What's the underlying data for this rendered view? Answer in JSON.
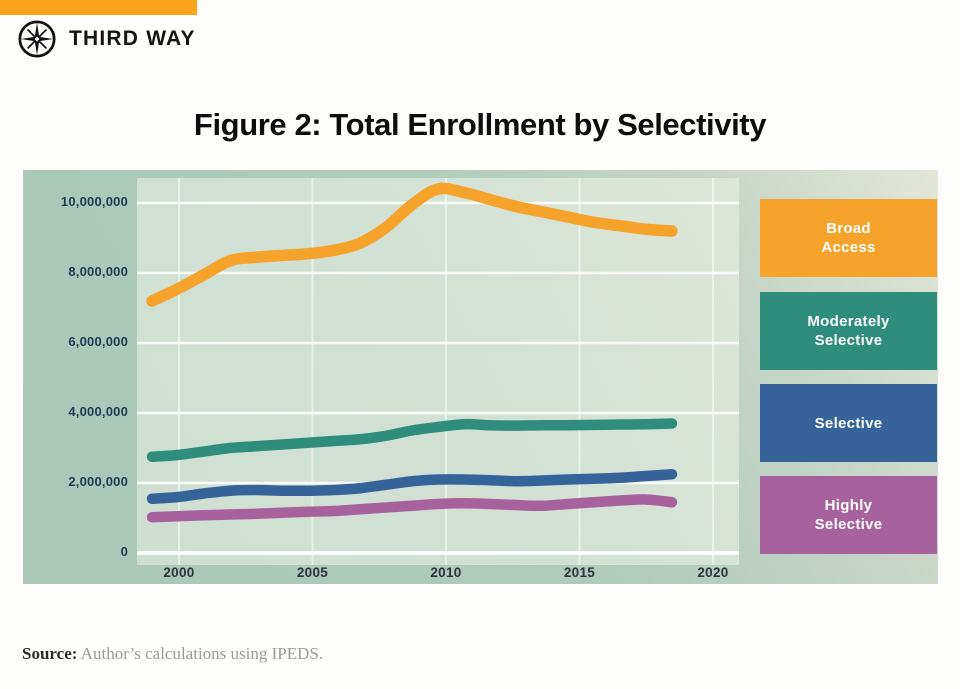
{
  "header": {
    "brand": "THIRD WAY"
  },
  "title": "Figure 2: Total Enrollment by Selectivity",
  "source": {
    "label": "Source:",
    "text": " Author’s calculations using IPEDS."
  },
  "colors": {
    "brand_orange": "#F9A51B",
    "broad_access": "#F5A32B",
    "moderately_selective": "#2F8E7B",
    "selective": "#35639A",
    "highly_selective": "#A7629D",
    "chart_outer_bg": "#AECBBB",
    "plot_bg": "#D3E1D5",
    "gridline": "#FFFFFF",
    "y_axis_label": "#1C3B51",
    "x_axis_label": "#2B333C"
  },
  "legend": {
    "items": [
      {
        "id": "broad-access",
        "lines": [
          "Broad",
          "Access"
        ],
        "color_key": "broad_access"
      },
      {
        "id": "moderately-selective",
        "lines": [
          "Moderately",
          "Selective"
        ],
        "color_key": "moderately_selective"
      },
      {
        "id": "selective",
        "lines": [
          "Selective"
        ],
        "color_key": "selective"
      },
      {
        "id": "highly-selective",
        "lines": [
          "Highly",
          "Selective"
        ],
        "color_key": "highly_selective"
      }
    ]
  },
  "chart_data": {
    "type": "line",
    "title": "Figure 2: Total Enrollment by Selectivity",
    "xlabel": "",
    "ylabel": "",
    "grid": true,
    "legend_position": "right",
    "xlim": [
      1998.5,
      2021.5
    ],
    "ylim": [
      0,
      10700000
    ],
    "x": [
      1999,
      2000,
      2001,
      2002,
      2003,
      2004,
      2005,
      2006,
      2007,
      2008,
      2009,
      2010,
      2011,
      2012,
      2013,
      2014,
      2015,
      2016,
      2017,
      2018,
      2019
    ],
    "x_ticks": [
      {
        "year": 2000,
        "label": "2000"
      },
      {
        "year": 2005,
        "label": "2005"
      },
      {
        "year": 2010,
        "label": "2010"
      },
      {
        "year": 2015,
        "label": "2015"
      },
      {
        "year": 2020,
        "label": "2020"
      }
    ],
    "y_ticks": [
      {
        "value": 10000000,
        "label": "10,000,000"
      },
      {
        "value": 8000000,
        "label": "8,000,000"
      },
      {
        "value": 6000000,
        "label": "6,000,000"
      },
      {
        "value": 4000000,
        "label": "4,000,000"
      },
      {
        "value": 2000000,
        "label": "2,000,000"
      },
      {
        "value": 0,
        "label": "0"
      }
    ],
    "series": [
      {
        "name": "Broad Access",
        "color_key": "broad_access",
        "values": [
          7200000,
          7550000,
          7950000,
          8350000,
          8450000,
          8500000,
          8550000,
          8650000,
          8850000,
          9300000,
          9950000,
          10400000,
          10300000,
          10100000,
          9900000,
          9750000,
          9600000,
          9450000,
          9350000,
          9250000,
          9200000
        ]
      },
      {
        "name": "Moderately Selective",
        "color_key": "moderately_selective",
        "values": [
          2750000,
          2800000,
          2900000,
          3000000,
          3050000,
          3100000,
          3150000,
          3200000,
          3250000,
          3350000,
          3500000,
          3600000,
          3680000,
          3650000,
          3640000,
          3650000,
          3650000,
          3660000,
          3670000,
          3680000,
          3700000
        ]
      },
      {
        "name": "Selective",
        "color_key": "selective",
        "values": [
          1550000,
          1600000,
          1700000,
          1780000,
          1800000,
          1780000,
          1780000,
          1800000,
          1850000,
          1950000,
          2050000,
          2100000,
          2100000,
          2080000,
          2050000,
          2070000,
          2100000,
          2120000,
          2150000,
          2200000,
          2250000
        ]
      },
      {
        "name": "Highly Selective",
        "color_key": "highly_selective",
        "values": [
          1020000,
          1050000,
          1080000,
          1100000,
          1120000,
          1150000,
          1180000,
          1200000,
          1250000,
          1300000,
          1350000,
          1400000,
          1420000,
          1400000,
          1370000,
          1350000,
          1400000,
          1450000,
          1500000,
          1530000,
          1450000
        ]
      }
    ]
  }
}
